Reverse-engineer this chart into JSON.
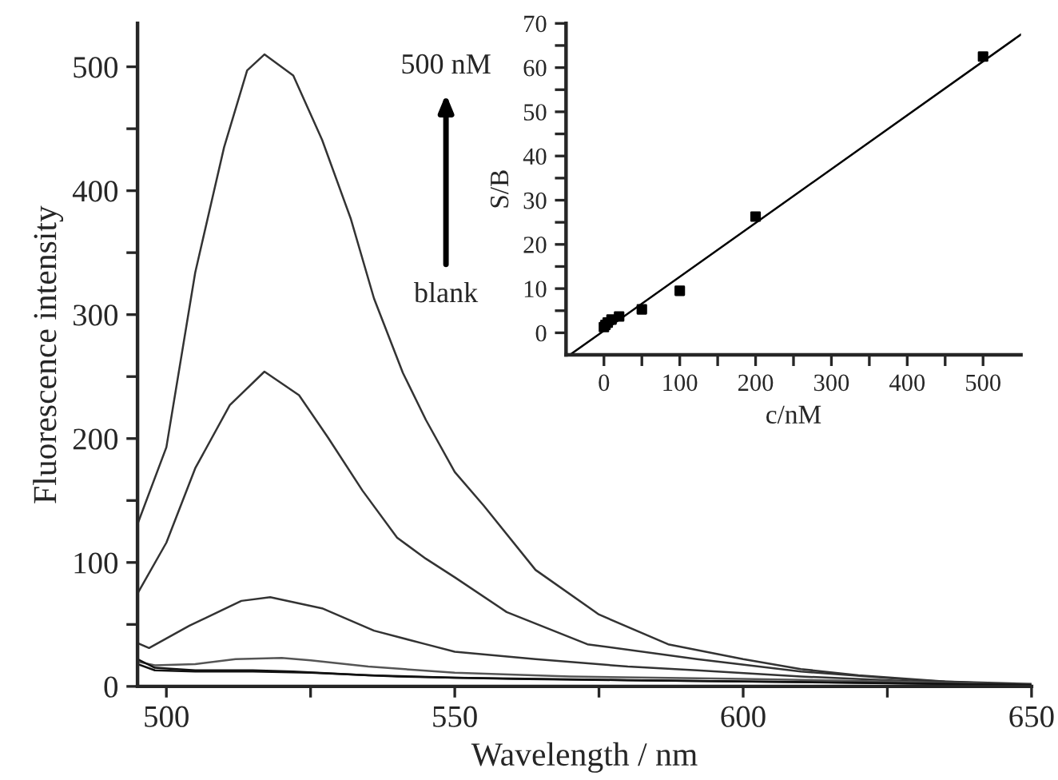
{
  "chart_data": [
    {
      "type": "line",
      "xlabel": "Wavelength / nm",
      "ylabel": "Fluorescence intensity",
      "xlim": [
        495,
        650
      ],
      "ylim": [
        0,
        535
      ],
      "xticks": [
        500,
        {
          "value": 525,
          "label": null
        },
        550,
        {
          "value": 575,
          "label": null
        },
        600,
        {
          "value": 625,
          "label": null
        },
        650
      ],
      "yticks": [
        0,
        {
          "value": 50,
          "label": null
        },
        100,
        {
          "value": 150,
          "label": null
        },
        200,
        {
          "value": 250,
          "label": null
        },
        300,
        {
          "value": 350,
          "label": null
        },
        400,
        {
          "value": 450,
          "label": null
        },
        500
      ],
      "grid": false,
      "legend": false,
      "marker": "none",
      "line_style": "solid",
      "annotations": [
        "500 nM",
        "blank"
      ],
      "series": [
        {
          "color": "#333333",
          "x": [
            495,
            500,
            505,
            510,
            514,
            517,
            522,
            527,
            532,
            536,
            541,
            545,
            550,
            555,
            564,
            575,
            587,
            600,
            610,
            620,
            635,
            650
          ],
          "values": [
            131,
            193,
            334,
            435,
            497,
            510,
            493,
            441,
            377,
            313,
            253,
            215,
            173,
            146,
            94,
            58,
            34,
            22,
            14,
            9,
            4,
            2
          ]
        },
        {
          "color": "#333333",
          "x": [
            495,
            500,
            505,
            511,
            517,
            523,
            528,
            534,
            540,
            545,
            550,
            559,
            573,
            592,
            610,
            630,
            650
          ],
          "values": [
            75,
            116,
            176,
            227,
            254,
            235,
            201,
            158,
            120,
            103,
            88,
            60,
            34,
            22,
            12,
            5,
            1
          ]
        },
        {
          "color": "#333333",
          "x": [
            495,
            497,
            504,
            513,
            518,
            527,
            536,
            545,
            550,
            564,
            580,
            592,
            610,
            630,
            650
          ],
          "values": [
            35,
            31,
            49,
            69,
            72,
            63,
            45,
            34,
            28,
            22,
            16,
            13,
            8,
            4,
            1
          ]
        },
        {
          "color": "#555555",
          "x": [
            495,
            498,
            505,
            512,
            520,
            525,
            535,
            550,
            570,
            600,
            625,
            650
          ],
          "values": [
            20,
            17,
            18,
            22,
            23,
            21,
            16,
            11,
            8,
            6,
            4,
            1
          ]
        },
        {
          "color": "#111111",
          "x": [
            495,
            498,
            505,
            515,
            522,
            535,
            550,
            580,
            620,
            650
          ],
          "values": [
            22,
            15,
            13,
            13,
            12,
            9,
            7,
            5,
            3,
            1
          ]
        },
        {
          "color": "#111111",
          "x": [
            495,
            498,
            505,
            515,
            525,
            540,
            560,
            600,
            650
          ],
          "values": [
            18,
            13,
            12,
            12,
            11,
            8,
            6,
            4,
            1
          ]
        }
      ]
    },
    {
      "type": "scatter",
      "xlabel": "c/nM",
      "ylabel": "S/B",
      "xlim": [
        -50,
        550
      ],
      "ylim": [
        -5,
        70
      ],
      "xticks": [
        0,
        {
          "value": 50,
          "label": null
        },
        100,
        {
          "value": 150,
          "label": null
        },
        200,
        {
          "value": 250,
          "label": null
        },
        300,
        {
          "value": 350,
          "label": null
        },
        400,
        {
          "value": 450,
          "label": null
        },
        500
      ],
      "yticks": [
        0,
        {
          "value": 5,
          "label": null
        },
        10,
        {
          "value": 15,
          "label": null
        },
        20,
        {
          "value": 25,
          "label": null
        },
        30,
        {
          "value": 35,
          "label": null
        },
        40,
        {
          "value": 45,
          "label": null
        },
        50,
        {
          "value": 55,
          "label": null
        },
        60,
        {
          "value": 65,
          "label": null
        },
        70
      ],
      "grid": false,
      "legend": false,
      "series": [
        {
          "color": "#000000",
          "marker": "square",
          "x": [
            0,
            2,
            5,
            10,
            20,
            50,
            100,
            200,
            500
          ],
          "values": [
            1.3,
            1.8,
            2.3,
            3,
            3.7,
            5.3,
            9.5,
            26.3,
            62.5
          ]
        },
        {
          "type": "line",
          "color": "#000000",
          "x": [
            -45,
            550
          ],
          "values": [
            -5,
            67.5
          ]
        }
      ]
    }
  ]
}
